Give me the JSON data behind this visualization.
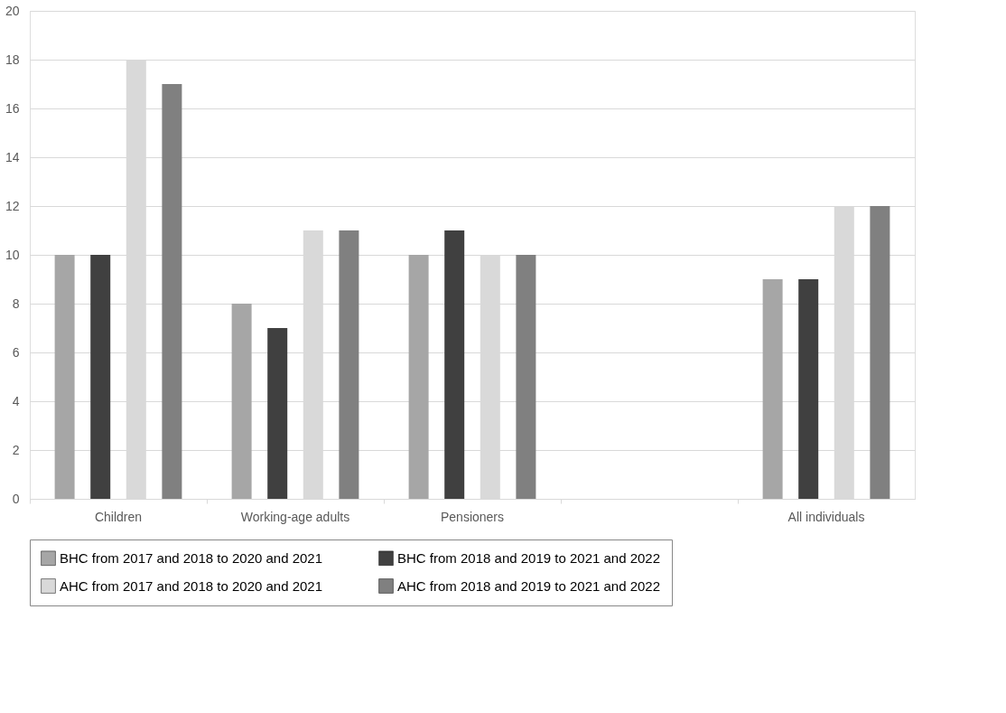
{
  "chart_data": {
    "type": "bar",
    "categories": [
      "Children",
      "Working-age adults",
      "Pensioners",
      null,
      "All individuals"
    ],
    "series": [
      {
        "name": "BHC from 2017 and 2018 to 2020 and 2021",
        "color": "#a6a6a6",
        "values": [
          10,
          8,
          10,
          null,
          9
        ]
      },
      {
        "name": "BHC from 2018 and 2019 to 2021 and 2022",
        "color": "#404040",
        "values": [
          10,
          7,
          11,
          null,
          9
        ]
      },
      {
        "name": "AHC from 2017 and 2018 to 2020 and 2021",
        "color": "#d9d9d9",
        "values": [
          18,
          11,
          10,
          null,
          12
        ]
      },
      {
        "name": "AHC from 2018 and 2019 to 2021 and 2022",
        "color": "#808080",
        "values": [
          17,
          11,
          10,
          null,
          12
        ]
      }
    ],
    "ylim": [
      0,
      20
    ],
    "yticks": [
      0,
      2,
      4,
      6,
      8,
      10,
      12,
      14,
      16,
      18,
      20
    ],
    "grid": "y",
    "legend": "bottom"
  }
}
